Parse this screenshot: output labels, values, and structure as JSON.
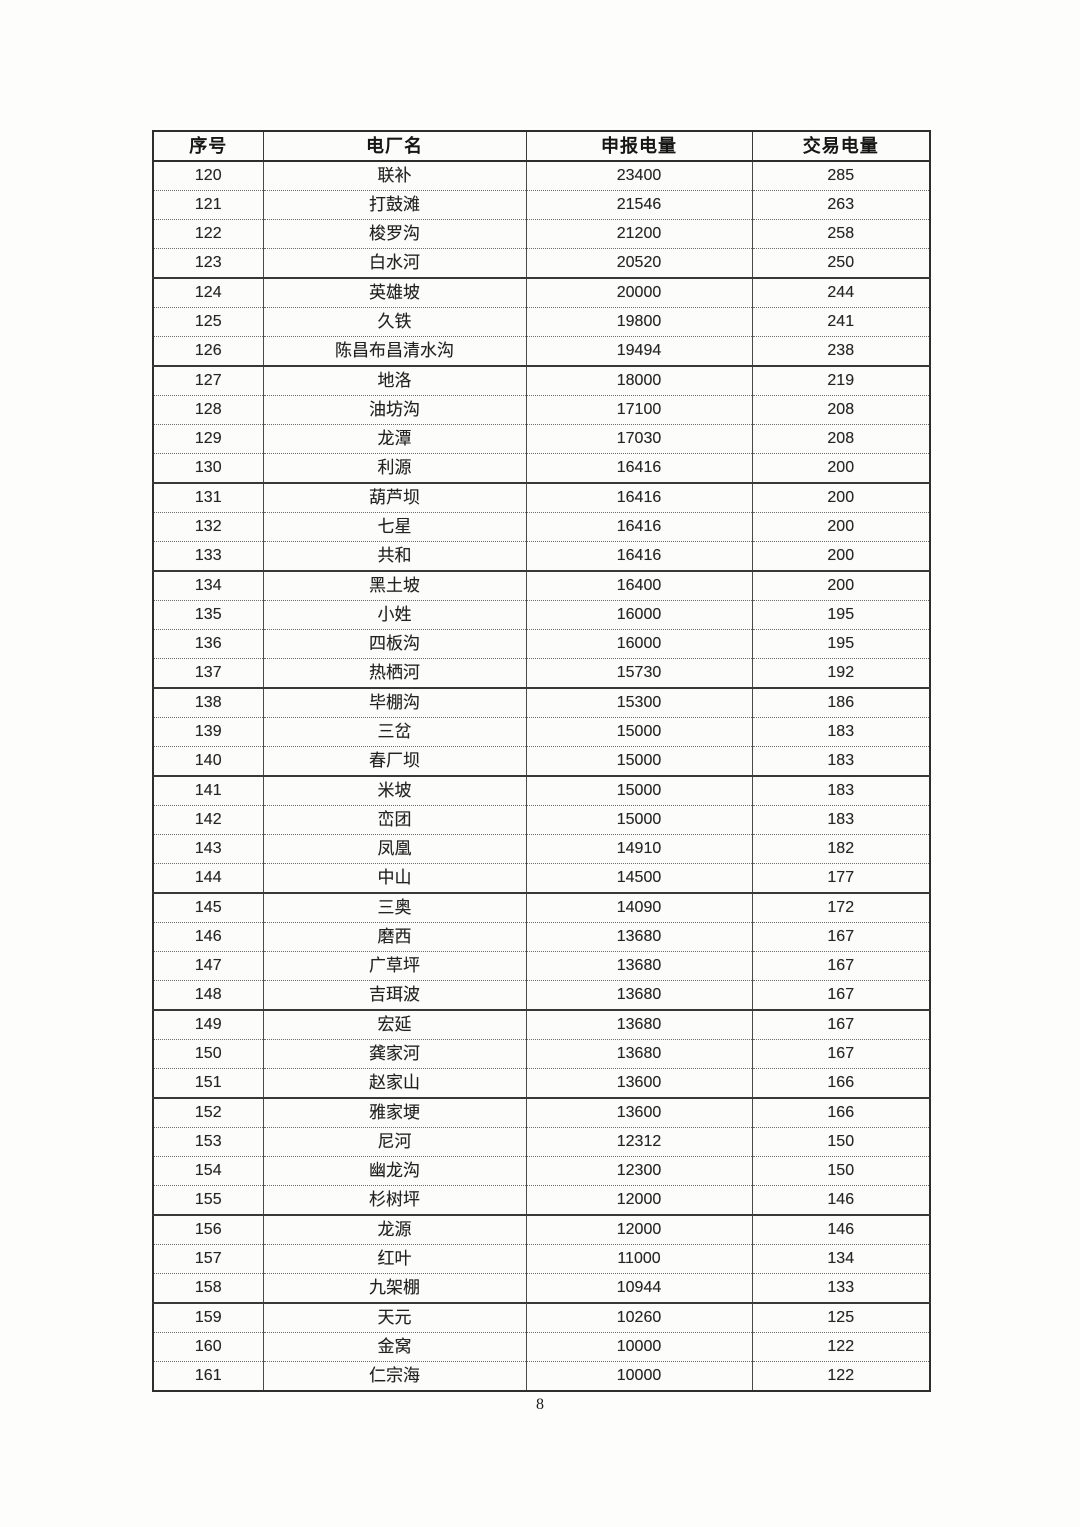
{
  "page": {
    "number": "8"
  },
  "table": {
    "headers": [
      "序号",
      "电厂名",
      "申报电量",
      "交易电量"
    ],
    "rows": [
      {
        "index": "120",
        "name": "联补",
        "declared": "23400",
        "traded": "285"
      },
      {
        "index": "121",
        "name": "打鼓滩",
        "declared": "21546",
        "traded": "263"
      },
      {
        "index": "122",
        "name": "梭罗沟",
        "declared": "21200",
        "traded": "258"
      },
      {
        "index": "123",
        "name": "白水河",
        "declared": "20520",
        "traded": "250"
      },
      {
        "index": "124",
        "name": "英雄坡",
        "declared": "20000",
        "traded": "244"
      },
      {
        "index": "125",
        "name": "久铁",
        "declared": "19800",
        "traded": "241"
      },
      {
        "index": "126",
        "name": "陈昌布昌清水沟",
        "declared": "19494",
        "traded": "238"
      },
      {
        "index": "127",
        "name": "地洛",
        "declared": "18000",
        "traded": "219"
      },
      {
        "index": "128",
        "name": "油坊沟",
        "declared": "17100",
        "traded": "208"
      },
      {
        "index": "129",
        "name": "龙潭",
        "declared": "17030",
        "traded": "208"
      },
      {
        "index": "130",
        "name": "利源",
        "declared": "16416",
        "traded": "200"
      },
      {
        "index": "131",
        "name": "葫芦坝",
        "declared": "16416",
        "traded": "200"
      },
      {
        "index": "132",
        "name": "七星",
        "declared": "16416",
        "traded": "200"
      },
      {
        "index": "133",
        "name": "共和",
        "declared": "16416",
        "traded": "200"
      },
      {
        "index": "134",
        "name": "黑土坡",
        "declared": "16400",
        "traded": "200"
      },
      {
        "index": "135",
        "name": "小姓",
        "declared": "16000",
        "traded": "195"
      },
      {
        "index": "136",
        "name": "四板沟",
        "declared": "16000",
        "traded": "195"
      },
      {
        "index": "137",
        "name": "热栖河",
        "declared": "15730",
        "traded": "192"
      },
      {
        "index": "138",
        "name": "毕棚沟",
        "declared": "15300",
        "traded": "186"
      },
      {
        "index": "139",
        "name": "三岔",
        "declared": "15000",
        "traded": "183"
      },
      {
        "index": "140",
        "name": "春厂坝",
        "declared": "15000",
        "traded": "183"
      },
      {
        "index": "141",
        "name": "米坡",
        "declared": "15000",
        "traded": "183"
      },
      {
        "index": "142",
        "name": "峦团",
        "declared": "15000",
        "traded": "183"
      },
      {
        "index": "143",
        "name": "凤凰",
        "declared": "14910",
        "traded": "182"
      },
      {
        "index": "144",
        "name": "中山",
        "declared": "14500",
        "traded": "177"
      },
      {
        "index": "145",
        "name": "三奥",
        "declared": "14090",
        "traded": "172"
      },
      {
        "index": "146",
        "name": "磨西",
        "declared": "13680",
        "traded": "167"
      },
      {
        "index": "147",
        "name": "广草坪",
        "declared": "13680",
        "traded": "167"
      },
      {
        "index": "148",
        "name": "吉珥波",
        "declared": "13680",
        "traded": "167"
      },
      {
        "index": "149",
        "name": "宏延",
        "declared": "13680",
        "traded": "167"
      },
      {
        "index": "150",
        "name": "龚家河",
        "declared": "13680",
        "traded": "167"
      },
      {
        "index": "151",
        "name": "赵家山",
        "declared": "13600",
        "traded": "166"
      },
      {
        "index": "152",
        "name": "雅家埂",
        "declared": "13600",
        "traded": "166"
      },
      {
        "index": "153",
        "name": "尼河",
        "declared": "12312",
        "traded": "150"
      },
      {
        "index": "154",
        "name": "幽龙沟",
        "declared": "12300",
        "traded": "150"
      },
      {
        "index": "155",
        "name": "杉树坪",
        "declared": "12000",
        "traded": "146"
      },
      {
        "index": "156",
        "name": "龙源",
        "declared": "12000",
        "traded": "146"
      },
      {
        "index": "157",
        "name": "红叶",
        "declared": "11000",
        "traded": "134"
      },
      {
        "index": "158",
        "name": "九架棚",
        "declared": "10944",
        "traded": "133"
      },
      {
        "index": "159",
        "name": "天元",
        "declared": "10260",
        "traded": "125"
      },
      {
        "index": "160",
        "name": "金窝",
        "declared": "10000",
        "traded": "122"
      },
      {
        "index": "161",
        "name": "仁宗海",
        "declared": "10000",
        "traded": "122"
      }
    ]
  }
}
